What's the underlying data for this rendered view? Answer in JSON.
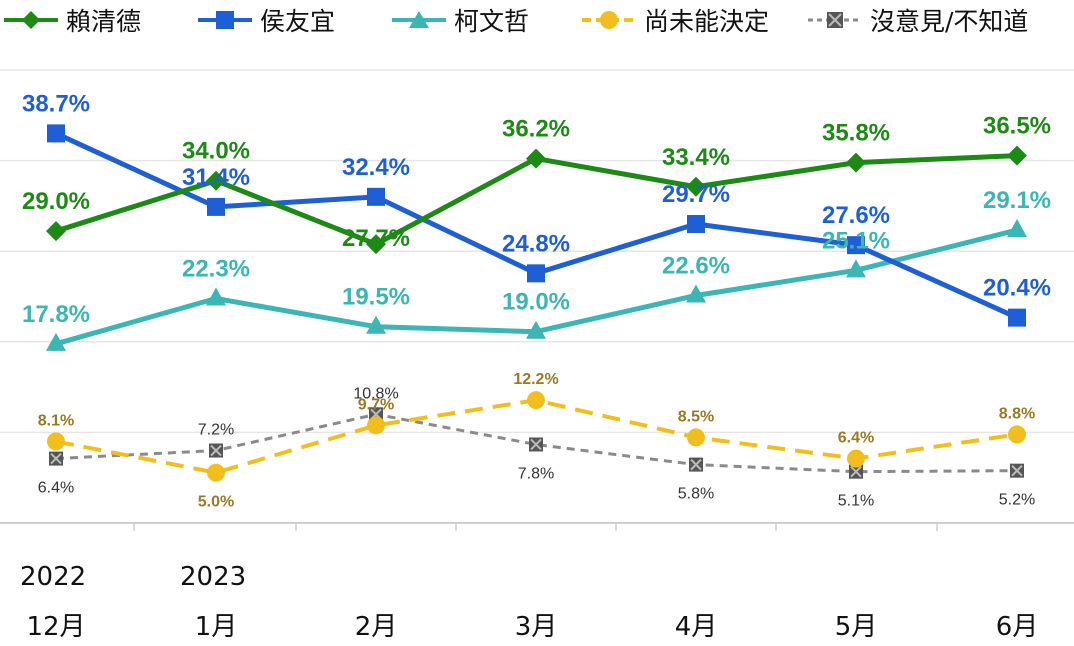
{
  "chart_data": {
    "type": "line",
    "title": "",
    "xlabel": "",
    "ylabel": "",
    "ylim": [
      0,
      45
    ],
    "grid": true,
    "legend_position": "top",
    "categories": [
      "12月",
      "1月",
      "2月",
      "3月",
      "4月",
      "5月",
      "6月"
    ],
    "years": [
      {
        "label": "2022",
        "index": 0
      },
      {
        "label": "2023",
        "index": 1
      }
    ],
    "series": [
      {
        "name": "賴清德",
        "color": "#1e8a16",
        "marker": "diamond",
        "dash": "solid",
        "values": [
          29.0,
          34.0,
          27.7,
          36.2,
          33.4,
          35.8,
          36.5
        ],
        "labels": [
          "29.0%",
          "34.0%",
          "27.7%",
          "36.2%",
          "33.4%",
          "35.8%",
          "36.5%"
        ],
        "label_pos": [
          "above",
          "above",
          "below",
          "above",
          "above",
          "above",
          "above"
        ]
      },
      {
        "name": "侯友宜",
        "color": "#1f5fd6",
        "marker": "square",
        "dash": "solid",
        "values": [
          38.7,
          31.4,
          32.4,
          24.8,
          29.7,
          27.6,
          20.4
        ],
        "labels": [
          "38.7%",
          "31.4%",
          "32.4%",
          "24.8%",
          "29.7%",
          "27.6%",
          "20.4%"
        ],
        "label_pos": [
          "above",
          "above",
          "above",
          "above",
          "above",
          "above",
          "above"
        ]
      },
      {
        "name": "柯文哲",
        "color": "#3cb5b5",
        "marker": "triangle",
        "dash": "solid",
        "values": [
          17.8,
          22.3,
          19.5,
          19.0,
          22.6,
          25.1,
          29.1
        ],
        "labels": [
          "17.8%",
          "22.3%",
          "19.5%",
          "19.0%",
          "22.6%",
          "25.1%",
          "29.1%"
        ],
        "label_pos": [
          "above",
          "above",
          "above",
          "above",
          "above",
          "above",
          "above"
        ]
      },
      {
        "name": "尚未能決定",
        "color": "#f2be1d",
        "label_color": "#9a7a22",
        "marker": "circle",
        "dash": "dashed",
        "values": [
          8.1,
          5.0,
          9.7,
          12.2,
          8.5,
          6.4,
          8.8
        ],
        "labels": [
          "8.1%",
          "5.0%",
          "9.7%",
          "12.2%",
          "8.5%",
          "6.4%",
          "8.8%"
        ],
        "label_pos": [
          "above",
          "below",
          "above",
          "above",
          "above",
          "above",
          "above"
        ]
      },
      {
        "name": "沒意見/不知道",
        "color": "#8a8a8a",
        "label_color": "#333333",
        "marker": "xsquare",
        "dash": "dotted",
        "values": [
          6.4,
          7.2,
          10.8,
          7.8,
          5.8,
          5.1,
          5.2
        ],
        "labels": [
          "6.4%",
          "7.2%",
          "10.8%",
          "7.8%",
          "5.8%",
          "5.1%",
          "5.2%"
        ],
        "label_pos": [
          "below",
          "above",
          "above",
          "below",
          "below",
          "below",
          "below"
        ]
      }
    ]
  }
}
